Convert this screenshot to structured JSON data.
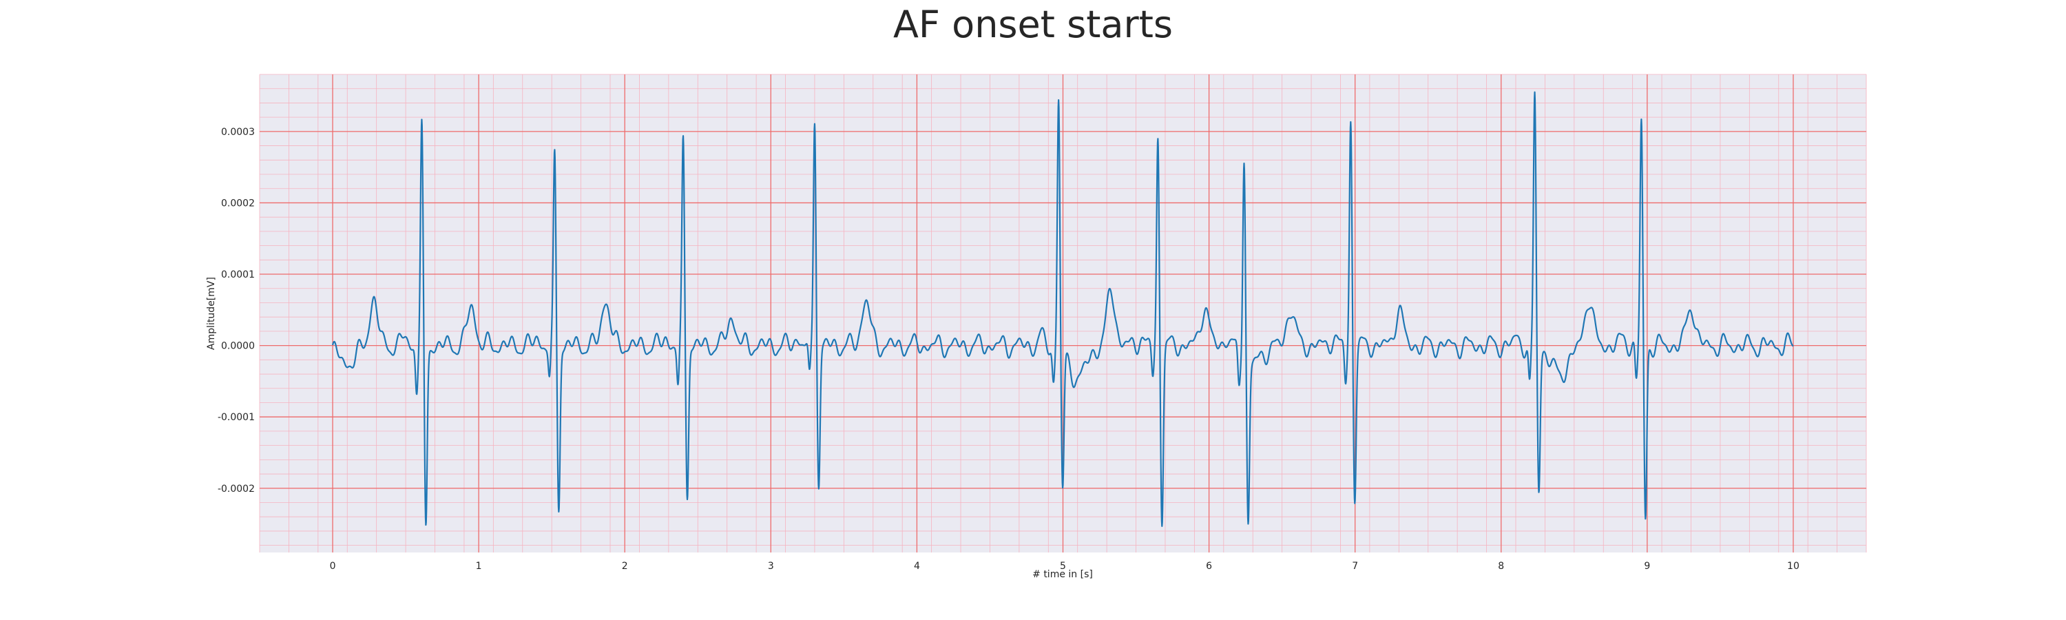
{
  "chart_data": {
    "type": "line",
    "title": "AF onset starts",
    "xlabel": "# time in [s]",
    "ylabel": "Amplitude[mV]",
    "xlim": [
      -0.5,
      10.5
    ],
    "ylim": [
      -0.00029,
      0.00038
    ],
    "xticks": [
      0,
      1,
      2,
      3,
      4,
      5,
      6,
      7,
      8,
      9,
      10
    ],
    "xtick_labels": [
      "0",
      "1",
      "2",
      "3",
      "4",
      "5",
      "6",
      "7",
      "8",
      "9",
      "10"
    ],
    "yticks": [
      -0.0002,
      -0.0001,
      0.0,
      0.0001,
      0.0002,
      0.0003
    ],
    "ytick_labels": [
      "-0.0002",
      "-0.0001",
      "0.0000",
      "0.0001",
      "0.0002",
      "0.0003"
    ],
    "grid": true,
    "grid_style": "ECG paper: major red lines at ticks, minor pink lines",
    "background": "#eaeaf2",
    "series": [
      {
        "color": "#1f77b4",
        "beats": [
          {
            "t": 0.61,
            "r": 0.000305,
            "s": -0.00026,
            "q": -6e-05
          },
          {
            "t": 1.52,
            "r": 0.00027,
            "s": -0.000225,
            "q": -5e-05
          },
          {
            "t": 2.4,
            "r": 0.000288,
            "s": -0.000205,
            "q": -6e-05
          },
          {
            "t": 3.3,
            "r": 0.000325,
            "s": -0.000195,
            "q": -5e-05
          },
          {
            "t": 4.97,
            "r": 0.000352,
            "s": -0.000195,
            "q": -5e-05
          },
          {
            "t": 5.65,
            "r": 0.00029,
            "s": -0.00024,
            "q": -4e-05
          },
          {
            "t": 6.24,
            "r": 0.000282,
            "s": -0.00023,
            "q": -5e-05
          },
          {
            "t": 6.97,
            "r": 0.000314,
            "s": -0.00021,
            "q": -5e-05
          },
          {
            "t": 8.23,
            "r": 0.000352,
            "s": -0.0002,
            "q": -6e-05
          },
          {
            "t": 8.96,
            "r": 0.000312,
            "s": -0.000245,
            "q": -5e-05
          }
        ],
        "t_waves": [
          {
            "t": 0.28,
            "a": 6.5e-05
          },
          {
            "t": 0.95,
            "a": 5.5e-05
          },
          {
            "t": 1.87,
            "a": 6.5e-05
          },
          {
            "t": 2.73,
            "a": 4e-05
          },
          {
            "t": 3.65,
            "a": 6.5e-05
          },
          {
            "t": 5.33,
            "a": 7.8e-05
          },
          {
            "t": 5.97,
            "a": 5.5e-05
          },
          {
            "t": 6.56,
            "a": 5.2e-05
          },
          {
            "t": 7.3,
            "a": 5e-05
          },
          {
            "t": 8.6,
            "a": 6.8e-05
          },
          {
            "t": 9.3,
            "a": 5.7e-05
          }
        ],
        "baseline_dips": [
          {
            "t": 0.1,
            "a": -2.5e-05
          },
          {
            "t": 5.1,
            "a": -4.5e-05
          },
          {
            "t": 8.4,
            "a": -4e-05
          },
          {
            "t": 6.3,
            "a": -2.5e-05
          }
        ],
        "t_start": 0.0,
        "t_end": 10.0
      }
    ]
  }
}
